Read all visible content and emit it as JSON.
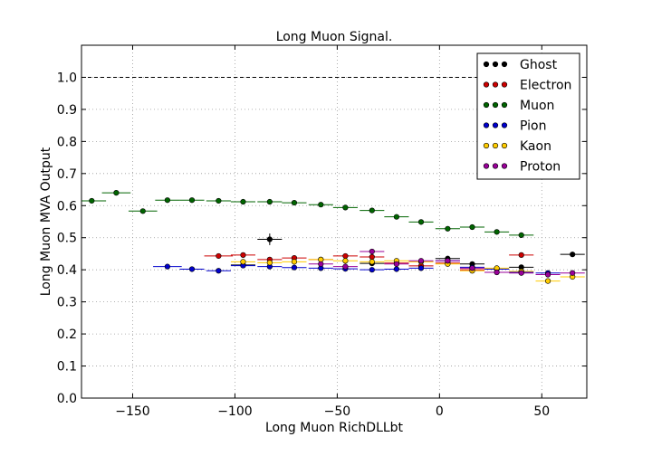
{
  "chart_data": {
    "type": "scatter",
    "title": "Long Muon Signal.",
    "xlabel": "Long Muon RichDLLbt",
    "ylabel": "Long Muon MVA Output",
    "xlim": [
      -175,
      72
    ],
    "ylim": [
      0.0,
      1.1
    ],
    "xticks": [
      "−150",
      "−100",
      "−50",
      "0",
      "50"
    ],
    "xtick_values": [
      -150,
      -100,
      -50,
      0,
      50
    ],
    "yticks": [
      "0.0",
      "0.1",
      "0.2",
      "0.3",
      "0.4",
      "0.5",
      "0.6",
      "0.7",
      "0.8",
      "0.9",
      "1.0"
    ],
    "ytick_values": [
      0.0,
      0.1,
      0.2,
      0.3,
      0.4,
      0.5,
      0.6,
      0.7,
      0.8,
      0.9,
      1.0
    ],
    "reference_line_y": 1.0,
    "grid": true,
    "legend_position": "top-right",
    "series": [
      {
        "name": "Ghost",
        "color": "#000000",
        "points": [
          {
            "x": -83,
            "y": 0.495,
            "xerr": 6,
            "yerr": 0.018
          },
          {
            "x": -96,
            "y": 0.415,
            "xerr": 6,
            "yerr": 0.005
          },
          {
            "x": -33,
            "y": 0.42,
            "xerr": 6,
            "yerr": 0.005
          },
          {
            "x": 4,
            "y": 0.435,
            "xerr": 6,
            "yerr": 0.005
          },
          {
            "x": 16,
            "y": 0.418,
            "xerr": 6,
            "yerr": 0.005
          },
          {
            "x": 40,
            "y": 0.408,
            "xerr": 6,
            "yerr": 0.005
          },
          {
            "x": 65,
            "y": 0.448,
            "xerr": 6,
            "yerr": 0.005
          }
        ]
      },
      {
        "name": "Electron",
        "color": "#cc0000",
        "points": [
          {
            "x": -108,
            "y": 0.443,
            "xerr": 7
          },
          {
            "x": -96,
            "y": 0.446,
            "xerr": 6
          },
          {
            "x": -83,
            "y": 0.432,
            "xerr": 6
          },
          {
            "x": -71,
            "y": 0.437,
            "xerr": 6
          },
          {
            "x": -58,
            "y": 0.432,
            "xerr": 6
          },
          {
            "x": -46,
            "y": 0.443,
            "xerr": 6
          },
          {
            "x": -33,
            "y": 0.44,
            "xerr": 6
          },
          {
            "x": -21,
            "y": 0.421,
            "xerr": 6
          },
          {
            "x": -9,
            "y": 0.412,
            "xerr": 6
          },
          {
            "x": 4,
            "y": 0.421,
            "xerr": 6
          },
          {
            "x": 16,
            "y": 0.4,
            "xerr": 6
          },
          {
            "x": 40,
            "y": 0.446,
            "xerr": 6
          }
        ]
      },
      {
        "name": "Muon",
        "color": "#006400",
        "points": [
          {
            "x": -170,
            "y": 0.615,
            "xerr": 7
          },
          {
            "x": -158,
            "y": 0.64,
            "xerr": 7
          },
          {
            "x": -145,
            "y": 0.583,
            "xerr": 7
          },
          {
            "x": -133,
            "y": 0.617,
            "xerr": 6
          },
          {
            "x": -121,
            "y": 0.617,
            "xerr": 6
          },
          {
            "x": -108,
            "y": 0.615,
            "xerr": 6
          },
          {
            "x": -96,
            "y": 0.612,
            "xerr": 6
          },
          {
            "x": -83,
            "y": 0.612,
            "xerr": 6
          },
          {
            "x": -71,
            "y": 0.609,
            "xerr": 6
          },
          {
            "x": -58,
            "y": 0.603,
            "xerr": 6
          },
          {
            "x": -46,
            "y": 0.594,
            "xerr": 6
          },
          {
            "x": -33,
            "y": 0.585,
            "xerr": 6
          },
          {
            "x": -21,
            "y": 0.565,
            "xerr": 6
          },
          {
            "x": -9,
            "y": 0.549,
            "xerr": 6
          },
          {
            "x": 4,
            "y": 0.528,
            "xerr": 6
          },
          {
            "x": 16,
            "y": 0.533,
            "xerr": 6
          },
          {
            "x": 28,
            "y": 0.518,
            "xerr": 6
          },
          {
            "x": 40,
            "y": 0.508,
            "xerr": 6
          }
        ]
      },
      {
        "name": "Pion",
        "color": "#0000cc",
        "points": [
          {
            "x": -133,
            "y": 0.41,
            "xerr": 7
          },
          {
            "x": -121,
            "y": 0.402,
            "xerr": 6
          },
          {
            "x": -108,
            "y": 0.397,
            "xerr": 6
          },
          {
            "x": -96,
            "y": 0.413,
            "xerr": 6
          },
          {
            "x": -83,
            "y": 0.41,
            "xerr": 6
          },
          {
            "x": -71,
            "y": 0.407,
            "xerr": 6
          },
          {
            "x": -58,
            "y": 0.405,
            "xerr": 6
          },
          {
            "x": -46,
            "y": 0.403,
            "xerr": 6
          },
          {
            "x": -33,
            "y": 0.4,
            "xerr": 6
          },
          {
            "x": -21,
            "y": 0.402,
            "xerr": 6
          },
          {
            "x": -9,
            "y": 0.405,
            "xerr": 6
          },
          {
            "x": 4,
            "y": 0.428,
            "xerr": 6
          },
          {
            "x": 16,
            "y": 0.408,
            "xerr": 6
          },
          {
            "x": 28,
            "y": 0.402,
            "xerr": 6
          },
          {
            "x": 40,
            "y": 0.392,
            "xerr": 6
          },
          {
            "x": 53,
            "y": 0.39,
            "xerr": 6
          }
        ]
      },
      {
        "name": "Kaon",
        "color": "#ffcc00",
        "points": [
          {
            "x": -96,
            "y": 0.425,
            "xerr": 6
          },
          {
            "x": -83,
            "y": 0.422,
            "xerr": 6
          },
          {
            "x": -71,
            "y": 0.425,
            "xerr": 6
          },
          {
            "x": -58,
            "y": 0.432,
            "xerr": 6
          },
          {
            "x": -46,
            "y": 0.428,
            "xerr": 6
          },
          {
            "x": -33,
            "y": 0.425,
            "xerr": 6
          },
          {
            "x": -21,
            "y": 0.428,
            "xerr": 6
          },
          {
            "x": -9,
            "y": 0.425,
            "xerr": 6
          },
          {
            "x": 4,
            "y": 0.418,
            "xerr": 6
          },
          {
            "x": 16,
            "y": 0.397,
            "xerr": 6
          },
          {
            "x": 28,
            "y": 0.405,
            "xerr": 6
          },
          {
            "x": 40,
            "y": 0.395,
            "xerr": 6
          },
          {
            "x": 53,
            "y": 0.365,
            "xerr": 6
          },
          {
            "x": 65,
            "y": 0.378,
            "xerr": 6
          }
        ]
      },
      {
        "name": "Proton",
        "color": "#990099",
        "points": [
          {
            "x": -58,
            "y": 0.418,
            "xerr": 6
          },
          {
            "x": -46,
            "y": 0.41,
            "xerr": 6
          },
          {
            "x": -33,
            "y": 0.457,
            "xerr": 6
          },
          {
            "x": -21,
            "y": 0.418,
            "xerr": 6
          },
          {
            "x": -9,
            "y": 0.428,
            "xerr": 6
          },
          {
            "x": 4,
            "y": 0.428,
            "xerr": 6
          },
          {
            "x": 16,
            "y": 0.405,
            "xerr": 6
          },
          {
            "x": 28,
            "y": 0.392,
            "xerr": 6
          },
          {
            "x": 40,
            "y": 0.39,
            "xerr": 6
          },
          {
            "x": 53,
            "y": 0.385,
            "xerr": 6
          },
          {
            "x": 65,
            "y": 0.39,
            "xerr": 6
          }
        ]
      }
    ]
  }
}
